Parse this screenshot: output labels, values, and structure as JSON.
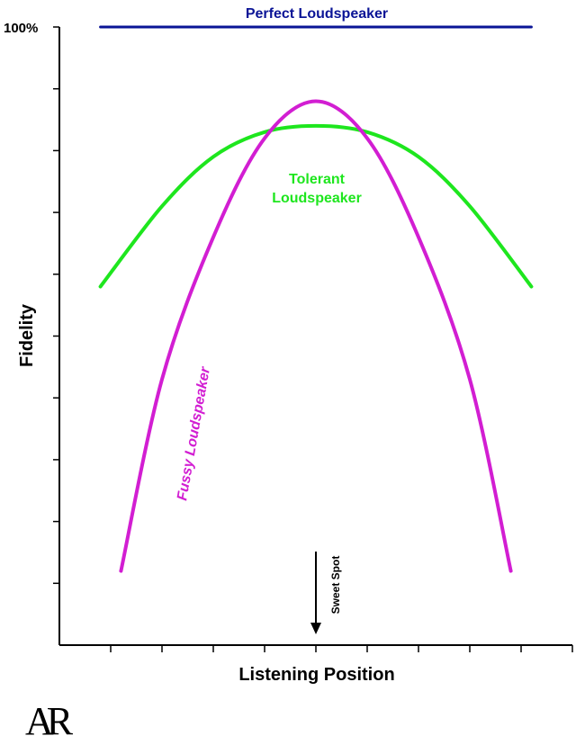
{
  "chart_data": {
    "type": "line",
    "title": "",
    "xlabel": "Listening Position",
    "ylabel": "Fidelity",
    "y_top_tick_label": "100%",
    "ylim": [
      0,
      100
    ],
    "xlim": [
      -5,
      5
    ],
    "x_tick_count": 11,
    "y_tick_count": 10,
    "grid": false,
    "legend": "none",
    "series": [
      {
        "name": "Perfect Loudspeaker",
        "color": "#0a1496",
        "x": [
          -4.2,
          4.2
        ],
        "y": [
          100,
          100
        ]
      },
      {
        "name": "Tolerant Loudspeaker",
        "color": "#1ee61e",
        "x": [
          -4.2,
          -3,
          -2,
          -1,
          0,
          1,
          2,
          3,
          4.2
        ],
        "y": [
          58,
          71,
          79,
          83,
          84,
          83,
          79,
          71,
          58
        ]
      },
      {
        "name": "Fussy Loudspeaker",
        "color": "#d21ed2",
        "x": [
          -3.8,
          -3,
          -2,
          -1,
          0,
          1,
          2,
          3,
          3.8
        ],
        "y": [
          12,
          43,
          66,
          82,
          88,
          82,
          66,
          43,
          12
        ]
      }
    ],
    "annotations": [
      {
        "text": "Sweet Spot",
        "x": 0
      }
    ]
  },
  "logo": {
    "text": "AR"
  }
}
